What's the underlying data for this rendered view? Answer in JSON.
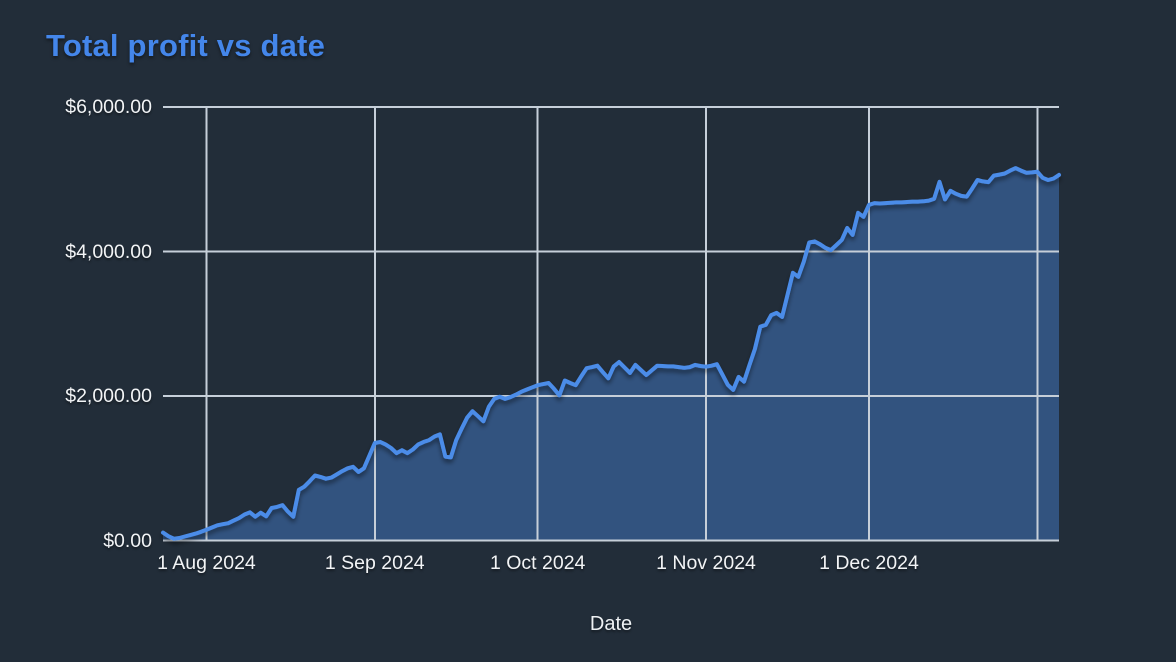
{
  "page": {
    "background": "#222d39"
  },
  "chart_data": {
    "type": "area",
    "title": "Total profit vs date",
    "xlabel": "Date",
    "ylabel": "",
    "ylim": [
      0,
      6000
    ],
    "grid": true,
    "legend_position": "none",
    "y_ticks": [
      {
        "value": 0,
        "label": "$0.00"
      },
      {
        "value": 2000,
        "label": "$2,000.00"
      },
      {
        "value": 4000,
        "label": "$4,000.00"
      },
      {
        "value": 6000,
        "label": "$6,000.00"
      }
    ],
    "x_ticks": [
      {
        "index": 8,
        "label": "1 Aug 2024"
      },
      {
        "index": 39,
        "label": "1 Sep 2024"
      },
      {
        "index": 69,
        "label": "1 Oct 2024"
      },
      {
        "index": 100,
        "label": "1 Nov 2024"
      },
      {
        "index": 130,
        "label": "1 Dec 2024"
      },
      {
        "index": 161,
        "label": ""
      }
    ],
    "series": [
      {
        "name": "Total profit",
        "values": [
          110,
          60,
          25,
          35,
          55,
          75,
          95,
          120,
          150,
          180,
          210,
          225,
          240,
          275,
          310,
          360,
          390,
          330,
          385,
          335,
          450,
          465,
          490,
          400,
          330,
          700,
          745,
          820,
          900,
          880,
          855,
          870,
          915,
          960,
          1000,
          1020,
          950,
          1000,
          1175,
          1350,
          1365,
          1330,
          1280,
          1210,
          1250,
          1210,
          1260,
          1330,
          1365,
          1390,
          1440,
          1470,
          1160,
          1150,
          1390,
          1550,
          1700,
          1790,
          1720,
          1650,
          1850,
          1960,
          1990,
          1960,
          1985,
          2020,
          2060,
          2090,
          2120,
          2150,
          2165,
          2180,
          2100,
          2010,
          2215,
          2180,
          2150,
          2270,
          2385,
          2400,
          2420,
          2330,
          2245,
          2410,
          2470,
          2395,
          2320,
          2430,
          2360,
          2290,
          2355,
          2420,
          2415,
          2410,
          2410,
          2400,
          2390,
          2400,
          2430,
          2415,
          2405,
          2420,
          2440,
          2300,
          2155,
          2085,
          2265,
          2200,
          2430,
          2650,
          2960,
          2985,
          3120,
          3150,
          3095,
          3400,
          3705,
          3650,
          3860,
          4125,
          4140,
          4100,
          4050,
          4020,
          4090,
          4160,
          4325,
          4230,
          4535,
          4480,
          4645,
          4670,
          4665,
          4670,
          4675,
          4680,
          4680,
          4685,
          4690,
          4690,
          4695,
          4705,
          4730,
          4965,
          4720,
          4840,
          4800,
          4770,
          4760,
          4870,
          4990,
          4970,
          4960,
          5050,
          5065,
          5080,
          5120,
          5155,
          5120,
          5090,
          5095,
          5105,
          5020,
          4990,
          5010,
          5060
        ]
      }
    ],
    "colors": {
      "title": "#4486ea",
      "line": "#4b8ce8",
      "fill": "rgba(75,140,232,0.40)",
      "grid": "#c6cfd9",
      "tick_label": "#f2f4f6",
      "axis_title": "#eef1f4",
      "background": "#222d39"
    }
  }
}
